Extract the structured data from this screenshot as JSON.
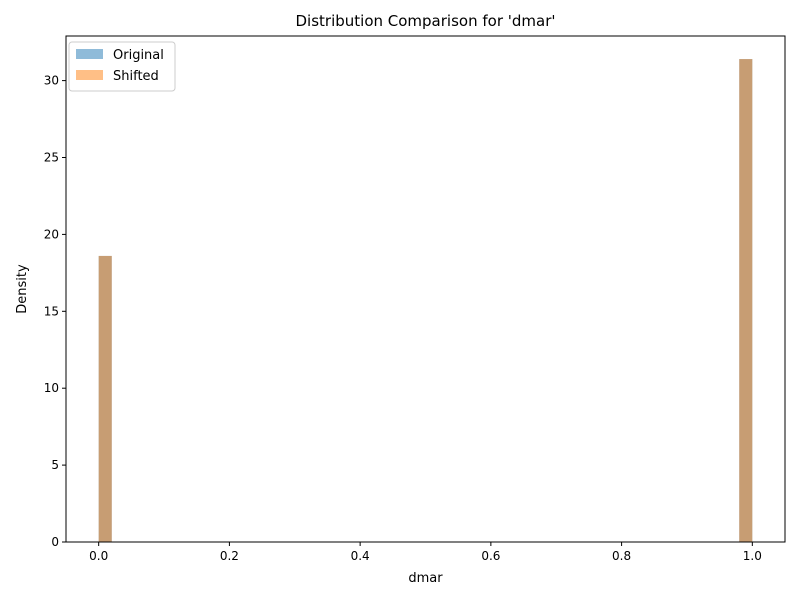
{
  "chart_data": {
    "type": "bar",
    "title": "Distribution Comparison for 'dmar'",
    "xlabel": "dmar",
    "ylabel": "Density",
    "xlim": [
      -0.05,
      1.05
    ],
    "ylim": [
      0,
      32.9
    ],
    "xticks": [
      "0.0",
      "0.2",
      "0.4",
      "0.6",
      "0.8",
      "1.0"
    ],
    "yticks": [
      "0",
      "5",
      "10",
      "15",
      "20",
      "25",
      "30"
    ],
    "bin_width": 0.02,
    "grid": false,
    "legend_position": "top-left",
    "series": [
      {
        "name": "Original",
        "color": "#1f77b4",
        "opacity": 0.5,
        "bins": [
          {
            "x0": 0.0,
            "density": 18.6
          },
          {
            "x0": 0.98,
            "density": 31.4
          }
        ]
      },
      {
        "name": "Shifted",
        "color": "#ff7f0e",
        "opacity": 0.5,
        "bins": [
          {
            "x0": 0.0,
            "density": 18.6
          },
          {
            "x0": 0.98,
            "density": 31.4
          }
        ]
      }
    ]
  }
}
